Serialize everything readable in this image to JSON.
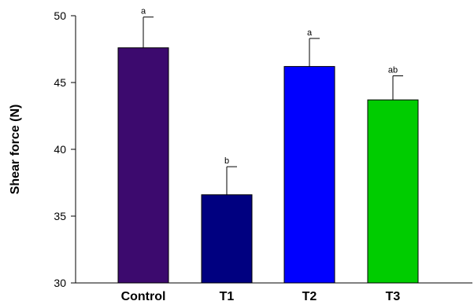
{
  "chart_data": {
    "type": "bar",
    "title": "",
    "xlabel": "",
    "ylabel": "Shear force (N)",
    "ylim": [
      30,
      50
    ],
    "yticks": [
      "30",
      "35",
      "40",
      "45",
      "50"
    ],
    "categories": [
      "Control",
      "T1",
      "T2",
      "T3"
    ],
    "values": [
      47.6,
      36.6,
      46.2,
      43.7
    ],
    "errors": [
      2.3,
      2.1,
      2.1,
      1.8
    ],
    "significance": [
      "a",
      "b",
      "a",
      "ab"
    ],
    "colors": [
      "#3c0a6e",
      "#000080",
      "#0000ff",
      "#00cc00"
    ],
    "grid": false,
    "legend": "none"
  }
}
